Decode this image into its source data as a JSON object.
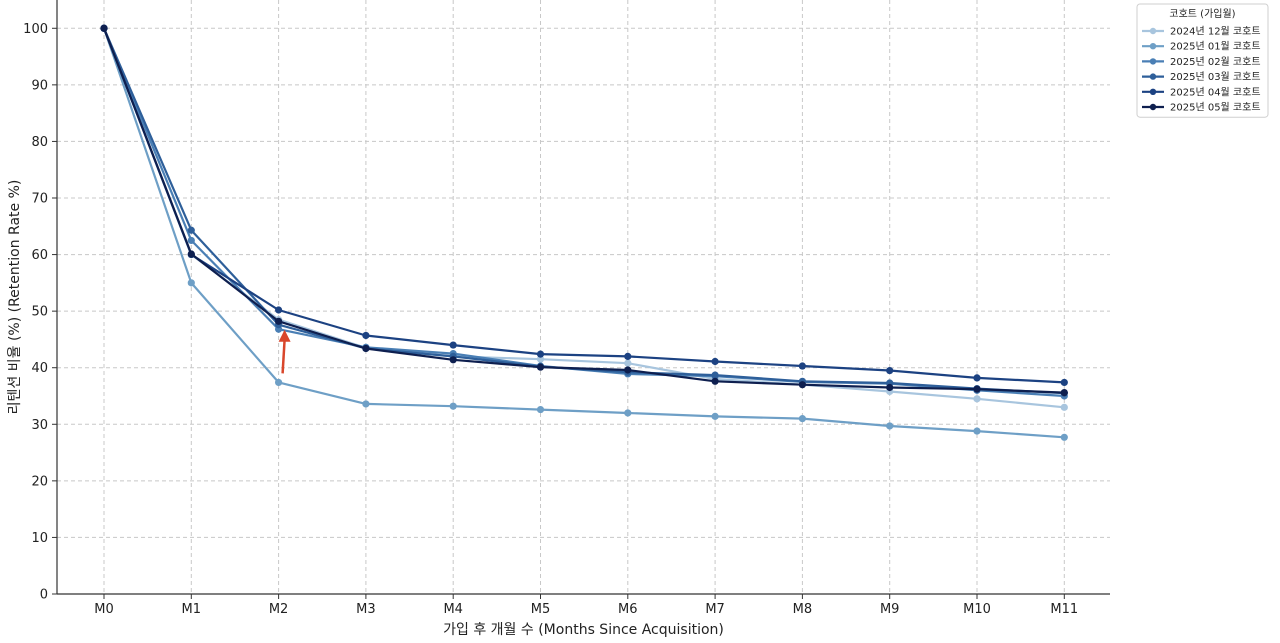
{
  "chart_data": {
    "type": "line",
    "title": "",
    "xlabel": "가입 후 개월 수 (Months Since Acquisition)",
    "ylabel": "리텐션 비율 (%) (Retention Rate %)",
    "ylim": [
      0,
      105
    ],
    "yticks": [
      0,
      10,
      20,
      30,
      40,
      50,
      60,
      70,
      80,
      90,
      100
    ],
    "categories": [
      "M0",
      "M1",
      "M2",
      "M3",
      "M4",
      "M5",
      "M6",
      "M7",
      "M8",
      "M9",
      "M10",
      "M11"
    ],
    "grid": true,
    "legend": {
      "title": "코호트 (가입월)",
      "placement": "outside-top-right"
    },
    "series": [
      {
        "name": "2024년 12월 코호트",
        "color": "#a8c5de",
        "values": [
          100,
          60.0,
          48.5,
          43.5,
          42.0,
          41.5,
          40.8,
          38.0,
          37.0,
          35.8,
          34.5,
          33.0
        ]
      },
      {
        "name": "2025년 01월 코호트",
        "color": "#6e9fc6",
        "values": [
          100,
          55.0,
          37.4,
          33.6,
          33.2,
          32.6,
          32.0,
          31.4,
          31.0,
          29.7,
          28.8,
          27.7
        ]
      },
      {
        "name": "2025년 02월 코호트",
        "color": "#4a7fb5",
        "values": [
          100,
          62.5,
          46.8,
          43.6,
          42.5,
          40.3,
          38.9,
          38.5,
          37.5,
          37.2,
          36.0,
          35.0
        ]
      },
      {
        "name": "2025년 03월 코호트",
        "color": "#2e5f9a",
        "values": [
          100,
          64.3,
          47.6,
          43.4,
          42.0,
          40.2,
          39.2,
          38.7,
          37.6,
          37.3,
          36.3,
          35.5
        ]
      },
      {
        "name": "2025년 04월 코호트",
        "color": "#1c4282",
        "values": [
          100,
          60.0,
          50.2,
          45.7,
          44.0,
          42.4,
          42.0,
          41.1,
          40.3,
          39.5,
          38.2,
          37.4
        ]
      },
      {
        "name": "2025년 05월 코호트",
        "color": "#0e1f4f",
        "values": [
          100,
          60.1,
          48.2,
          43.4,
          41.4,
          40.1,
          39.6,
          37.6,
          37.0,
          36.5,
          36.2,
          35.6
        ]
      }
    ],
    "annotations": [
      {
        "type": "arrow",
        "color": "#d9462b",
        "from": {
          "x": "M2",
          "y": 39.0
        },
        "to": {
          "x": "M2",
          "y": 46.0
        }
      }
    ]
  }
}
